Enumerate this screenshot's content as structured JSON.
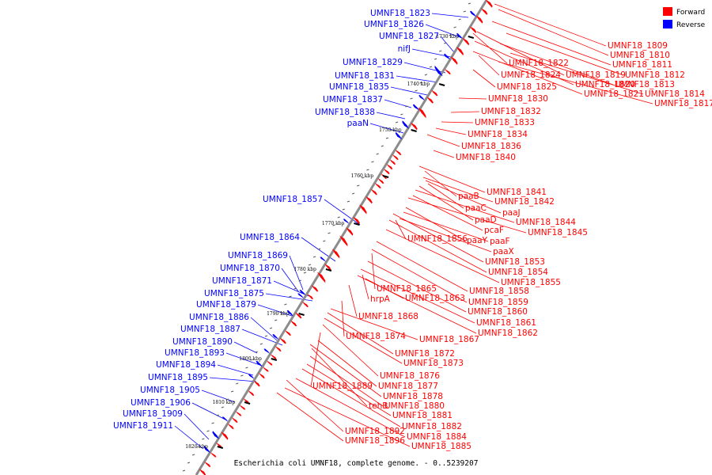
{
  "colors": {
    "forward": "#ff0000",
    "reverse": "#0000ff",
    "backbone": "#8c8c8c",
    "tick": "#000000"
  },
  "legend": {
    "forward": "Forward",
    "reverse": "Reverse"
  },
  "caption": "Escherichia coli UMNF18, complete genome. - 0..5239207",
  "ticks": [
    "1730 kbp",
    "1740 kbp",
    "1750 kbp",
    "1760 kbp",
    "1770 kbp",
    "1780 kbp",
    "1790 kbp",
    "1800 kbp",
    "1810 kbp",
    "1820 kbp"
  ],
  "reverse_labels": [
    "UMNF18_1823",
    "UMNF18_1826",
    "UMNF18_1827",
    "nifJ",
    "UMNF18_1829",
    "UMNF18_1831",
    "UMNF18_1835",
    "UMNF18_1837",
    "UMNF18_1838",
    "paaN",
    "UMNF18_1857",
    "UMNF18_1864",
    "UMNF18_1869",
    "UMNF18_1870",
    "UMNF18_1871",
    "UMNF18_1875",
    "UMNF18_1879",
    "UMNF18_1886",
    "UMNF18_1887",
    "UMNF18_1890",
    "UMNF18_1893",
    "UMNF18_1894",
    "UMNF18_1895",
    "UMNF18_1905",
    "UMNF18_1906",
    "UMNF18_1909",
    "UMNF18_1911"
  ],
  "forward_labels": [
    "UMNF18_1809",
    "UMNF18_1810",
    "UMNF18_1811",
    "UMNF18_1812",
    "UMNF18_1813",
    "UMNF18_1814",
    "UMNF18_1817",
    "UMNF18_1819",
    "UMNF18_1820",
    "UMNF18_1821",
    "UMNF18_1822",
    "UMNF18_1824",
    "UMNF18_1825",
    "UMNF18_1830",
    "UMNF18_1832",
    "UMNF18_1833",
    "UMNF18_1834",
    "UMNF18_1836",
    "UMNF18_1840",
    "UMNF18_1841",
    "paaB",
    "UMNF18_1842",
    "paaC",
    "paaJ",
    "paaD",
    "UMNF18_1844",
    "pcaF",
    "UMNF18_1845",
    "UMNF18_1856",
    "paaY",
    "paaF",
    "paaX",
    "UMNF18_1853",
    "UMNF18_1854",
    "UMNF18_1855",
    "UMNF18_1865",
    "UMNF18_1858",
    "hrpA",
    "UMNF18_1863",
    "UMNF18_1859",
    "UMNF18_1860",
    "UMNF18_1868",
    "UMNF18_1861",
    "UMNF18_1862",
    "UMNF18_1874",
    "UMNF18_1867",
    "UMNF18_1872",
    "UMNF18_1873",
    "UMNF18_1876",
    "UMNF18_1889",
    "UMNF18_1877",
    "UMNF18_1878",
    "tehB",
    "UMNF18_1880",
    "UMNF18_1881",
    "UMNF18_1882",
    "UMNF18_1892",
    "UMNF18_1884",
    "UMNF18_1896",
    "UMNF18_1885"
  ]
}
